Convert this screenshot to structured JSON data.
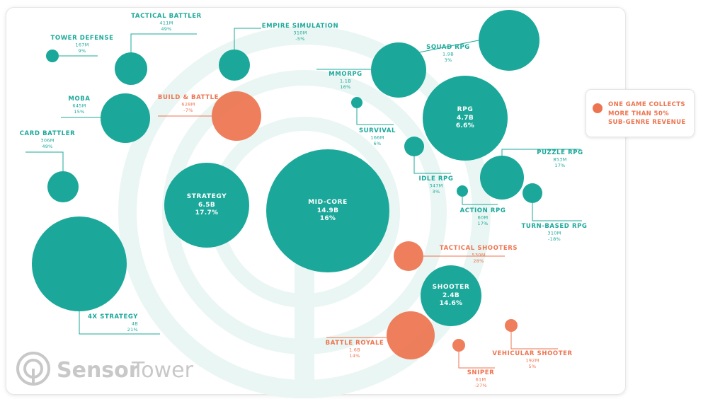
{
  "colors": {
    "teal": "#1ba89a",
    "orange": "#ed7450",
    "watermark": "#e9f6f3",
    "logo": "#c8c8c8"
  },
  "legend": {
    "text": "ONE GAME COLLECTS\nMORE THAN 50%\nSUB-GENRE REVENUE",
    "icon": "orange-dot-icon"
  },
  "logo": {
    "text_1": "Sensor",
    "text_2": "Tower"
  },
  "chart_data": {
    "type": "bubble",
    "title": "",
    "nodes": [
      {
        "id": "mid-core",
        "name": "MID-CORE",
        "revenue": "14.9B",
        "growth": "16%",
        "highlight": false
      },
      {
        "id": "strategy",
        "name": "STRATEGY",
        "revenue": "6.5B",
        "growth": "17.7%",
        "highlight": false
      },
      {
        "id": "rpg",
        "name": "RPG",
        "revenue": "4.7B",
        "growth": "6.6%",
        "highlight": false
      },
      {
        "id": "shooter",
        "name": "SHOOTER",
        "revenue": "2.4B",
        "growth": "14.6%",
        "highlight": false
      },
      {
        "id": "4x-strategy",
        "name": "4X STRATEGY",
        "revenue": "4B",
        "growth": "21%",
        "highlight": false
      },
      {
        "id": "card-battler",
        "name": "CARD BATTLER",
        "revenue": "306M",
        "growth": "49%",
        "highlight": false
      },
      {
        "id": "moba",
        "name": "MOBA",
        "revenue": "645M",
        "growth": "15%",
        "highlight": false
      },
      {
        "id": "tower-defense",
        "name": "TOWER DEFENSE",
        "revenue": "167M",
        "growth": "9%",
        "highlight": false
      },
      {
        "id": "tactical-battler",
        "name": "TACTICAL BATTLER",
        "revenue": "411M",
        "growth": "49%",
        "highlight": false
      },
      {
        "id": "empire-simulation",
        "name": "EMPIRE SIMULATION",
        "revenue": "310M",
        "growth": "-5%",
        "highlight": false
      },
      {
        "id": "build-battle",
        "name": "BUILD & BATTLE",
        "revenue": "628M",
        "growth": "-7%",
        "highlight": true
      },
      {
        "id": "mmorpg",
        "name": "MMORPG",
        "revenue": "1.1B",
        "growth": "16%",
        "highlight": false
      },
      {
        "id": "squad-rpg",
        "name": "SQUAD RPG",
        "revenue": "1.9B",
        "growth": "3%",
        "highlight": false
      },
      {
        "id": "survival",
        "name": "SURVIVAL",
        "revenue": "166M",
        "growth": "6%",
        "highlight": false
      },
      {
        "id": "idle-rpg",
        "name": "IDLE RPG",
        "revenue": "347M",
        "growth": "3%",
        "highlight": false
      },
      {
        "id": "puzzle-rpg",
        "name": "PUZZLE RPG",
        "revenue": "853M",
        "growth": "17%",
        "highlight": false
      },
      {
        "id": "action-rpg",
        "name": "ACTION RPG",
        "revenue": "60M",
        "growth": "17%",
        "highlight": false
      },
      {
        "id": "turn-based-rpg",
        "name": "TURN-BASED RPG",
        "revenue": "310M",
        "growth": "-18%",
        "highlight": false
      },
      {
        "id": "tactical-shooters",
        "name": "TACTICAL SHOOTERS",
        "revenue": "530M",
        "growth": "28%",
        "highlight": true
      },
      {
        "id": "battle-royale",
        "name": "BATTLE ROYALE",
        "revenue": "1.6B",
        "growth": "14%",
        "highlight": true
      },
      {
        "id": "sniper",
        "name": "SNIPER",
        "revenue": "61M",
        "growth": "-27%",
        "highlight": true
      },
      {
        "id": "vehicular-shooter",
        "name": "VEHICULAR SHOOTER",
        "revenue": "192M",
        "growth": "5%",
        "highlight": true
      }
    ]
  }
}
